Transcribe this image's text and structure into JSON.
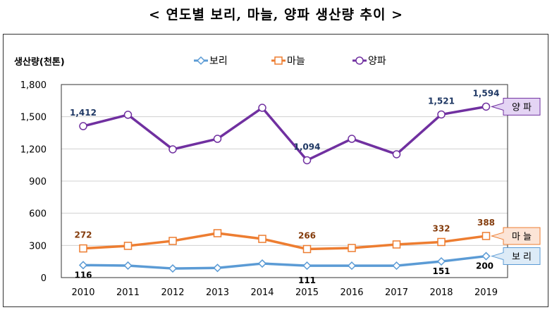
{
  "title": "< 연도별 보리, 마늘, 양파 생산량  추이 >",
  "chart_data": {
    "type": "line",
    "ylabel": "생산량(천톤)",
    "ylim": [
      0,
      1800
    ],
    "yticks": [
      0,
      300,
      600,
      900,
      1200,
      1500,
      1800
    ],
    "ytick_labels": [
      "0",
      "300",
      "600",
      "900",
      "1,200",
      "1,500",
      "1,800"
    ],
    "categories": [
      "2010",
      "2011",
      "2012",
      "2013",
      "2014",
      "2015",
      "2016",
      "2017",
      "2018",
      "2019"
    ],
    "grid": true,
    "legend": "top-center",
    "series": [
      {
        "name": "보리",
        "color": "#5B9BD5",
        "marker": "diamond",
        "values": [
          116,
          112,
          85,
          90,
          131,
          111,
          111,
          111,
          151,
          200
        ],
        "labels": {
          "0": "116",
          "5": "111",
          "8": "151",
          "9": "200"
        },
        "label_color": "#000000",
        "callout": "보 리",
        "callout_bg": "#DDEBF7"
      },
      {
        "name": "마늘",
        "color": "#ED7D31",
        "marker": "square",
        "values": [
          272,
          296,
          342,
          414,
          361,
          266,
          276,
          309,
          332,
          388
        ],
        "labels": {
          "0": "272",
          "5": "266",
          "8": "332",
          "9": "388"
        },
        "label_color": "#843C0C",
        "callout": "마 늘",
        "callout_bg": "#FCE4D6"
      },
      {
        "name": "양파",
        "color": "#7030A0",
        "marker": "circle",
        "values": [
          1412,
          1518,
          1196,
          1294,
          1583,
          1094,
          1294,
          1150,
          1521,
          1594
        ],
        "labels": {
          "0": "1,412",
          "5": "1,094",
          "8": "1,521",
          "9": "1,594"
        },
        "label_color": "#1F3864",
        "callout": "양 파",
        "callout_bg": "#E4D4F4"
      }
    ]
  }
}
